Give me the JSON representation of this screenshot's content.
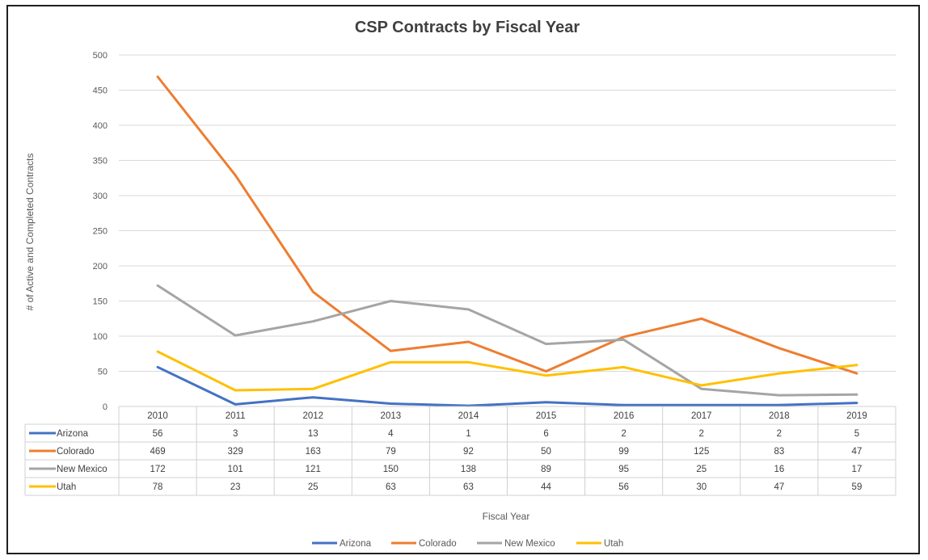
{
  "chart_data": {
    "type": "line",
    "title": "CSP Contracts by Fiscal Year",
    "xlabel": "Fiscal Year",
    "ylabel": "# of Active and Completed Contracts",
    "ylim": [
      0,
      500
    ],
    "yticks": [
      "0",
      "50",
      "100",
      "150",
      "200",
      "250",
      "300",
      "350",
      "400",
      "450",
      "500"
    ],
    "categories": [
      "2010",
      "2011",
      "2012",
      "2013",
      "2014",
      "2015",
      "2016",
      "2017",
      "2018",
      "2019"
    ],
    "grid": true,
    "legend_position": "bottom",
    "data_table": true,
    "series": [
      {
        "name": "Arizona",
        "color": "#4472C4",
        "values": [
          56,
          3,
          13,
          4,
          1,
          6,
          2,
          2,
          2,
          5
        ]
      },
      {
        "name": "Colorado",
        "color": "#ED7D31",
        "values": [
          469,
          329,
          163,
          79,
          92,
          50,
          99,
          125,
          83,
          47
        ]
      },
      {
        "name": "New Mexico",
        "color": "#A5A5A5",
        "values": [
          172,
          101,
          121,
          150,
          138,
          89,
          95,
          25,
          16,
          17
        ]
      },
      {
        "name": "Utah",
        "color": "#FFC000",
        "values": [
          78,
          23,
          25,
          63,
          63,
          44,
          56,
          30,
          47,
          59
        ]
      }
    ]
  }
}
